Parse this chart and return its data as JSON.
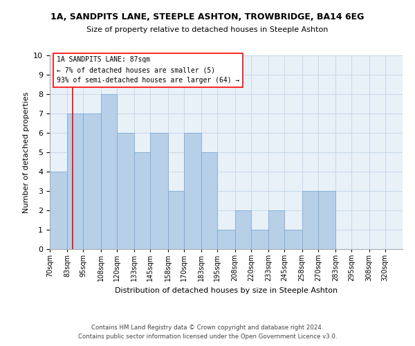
{
  "title": "1A, SANDPITS LANE, STEEPLE ASHTON, TROWBRIDGE, BA14 6EG",
  "subtitle": "Size of property relative to detached houses in Steeple Ashton",
  "xlabel": "Distribution of detached houses by size in Steeple Ashton",
  "ylabel": "Number of detached properties",
  "bar_labels": [
    "70sqm",
    "83sqm",
    "95sqm",
    "108sqm",
    "120sqm",
    "133sqm",
    "145sqm",
    "158sqm",
    "170sqm",
    "183sqm",
    "195sqm",
    "208sqm",
    "220sqm",
    "233sqm",
    "245sqm",
    "258sqm",
    "270sqm",
    "283sqm",
    "295sqm",
    "308sqm",
    "320sqm"
  ],
  "bar_values": [
    4,
    7,
    7,
    8,
    6,
    5,
    6,
    3,
    6,
    5,
    1,
    2,
    1,
    2,
    1,
    3,
    3,
    0,
    0,
    0,
    0
  ],
  "bar_color": "#b8cfe8",
  "bar_edge_color": "#7aacd4",
  "grid_color": "#c8d8e8",
  "bg_color": "#e8f0f8",
  "ylim": [
    0,
    10
  ],
  "yticks": [
    0,
    1,
    2,
    3,
    4,
    5,
    6,
    7,
    8,
    9,
    10
  ],
  "red_line_x": 87,
  "bin_edges": [
    70,
    83,
    95,
    108,
    120,
    133,
    145,
    158,
    170,
    183,
    195,
    208,
    220,
    233,
    245,
    258,
    270,
    283,
    295,
    308,
    320,
    333
  ],
  "annotation_title": "1A SANDPITS LANE: 87sqm",
  "annotation_line1": "← 7% of detached houses are smaller (5)",
  "annotation_line2": "93% of semi-detached houses are larger (64) →",
  "footer1": "Contains HM Land Registry data © Crown copyright and database right 2024.",
  "footer2": "Contains public sector information licensed under the Open Government Licence v3.0."
}
